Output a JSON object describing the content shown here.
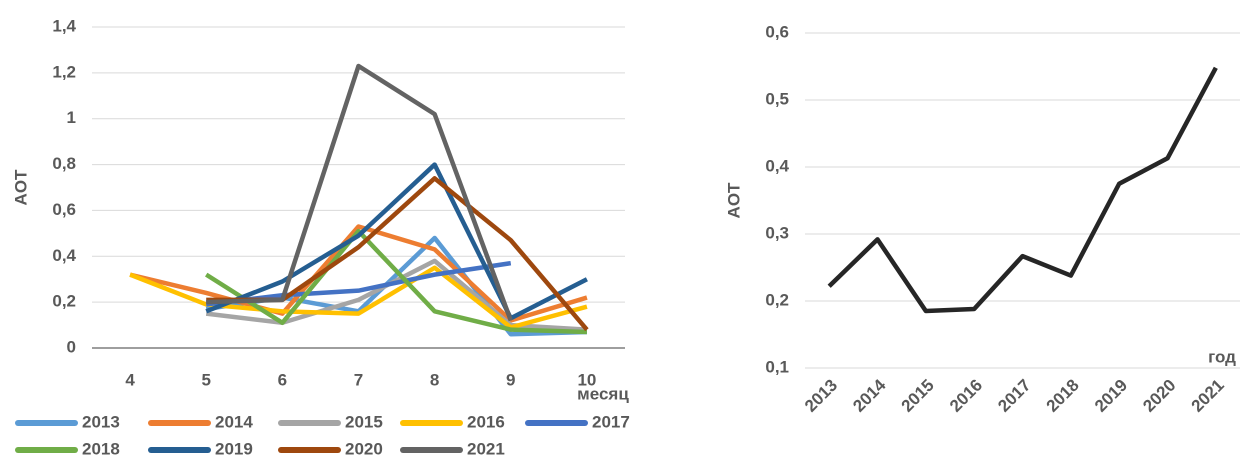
{
  "chart_data": [
    {
      "type": "line",
      "ylabel": "AOT",
      "xlabel": "месяц",
      "categories": [
        "4",
        "5",
        "6",
        "7",
        "8",
        "9",
        "10"
      ],
      "ylim": [
        0,
        1.4
      ],
      "yticks": [
        0,
        {
          "value": 0.2,
          "label": "0,2"
        },
        {
          "value": 0.4,
          "label": "0,4"
        },
        {
          "value": 0.6,
          "label": "0,6"
        },
        {
          "value": 0.8,
          "label": "0,8"
        },
        {
          "value": 1,
          "label": "1"
        },
        {
          "value": 1.2,
          "label": "1,2"
        },
        {
          "value": 1.4,
          "label": "1,4"
        }
      ],
      "grid": true,
      "legend": "bottom",
      "series": [
        {
          "name": "2013",
          "color": "#5b9bd5",
          "values": [
            null,
            0.17,
            0.22,
            0.16,
            0.48,
            0.06,
            0.07
          ]
        },
        {
          "name": "2014",
          "color": "#ed7d31",
          "values": [
            0.32,
            0.24,
            0.15,
            0.53,
            0.43,
            0.12,
            0.22
          ]
        },
        {
          "name": "2015",
          "color": "#a5a5a5",
          "values": [
            null,
            0.15,
            0.11,
            0.21,
            0.38,
            0.1,
            0.08
          ]
        },
        {
          "name": "2016",
          "color": "#ffc000",
          "values": [
            0.32,
            0.19,
            0.16,
            0.15,
            0.35,
            0.09,
            0.18
          ]
        },
        {
          "name": "2017",
          "color": "#4472c4",
          "values": [
            null,
            0.19,
            0.23,
            0.25,
            0.32,
            0.37,
            null
          ]
        },
        {
          "name": "2018",
          "color": "#70ad47",
          "values": [
            null,
            0.32,
            0.11,
            0.51,
            0.16,
            0.08,
            0.07
          ]
        },
        {
          "name": "2019",
          "color": "#255e91",
          "values": [
            null,
            0.16,
            0.29,
            0.49,
            0.8,
            0.13,
            0.3
          ]
        },
        {
          "name": "2020",
          "color": "#9e480e",
          "values": [
            null,
            0.21,
            0.21,
            0.44,
            0.74,
            0.47,
            0.08
          ]
        },
        {
          "name": "2021",
          "color": "#636363",
          "values": [
            null,
            0.2,
            0.21,
            1.23,
            1.02,
            0.12,
            null
          ]
        }
      ]
    },
    {
      "type": "line",
      "ylabel": "AOT",
      "xlabel": "год",
      "categories": [
        "2013",
        "2014",
        "2015",
        "2016",
        "2017",
        "2018",
        "2019",
        "2020",
        "2021"
      ],
      "ylim": [
        0.1,
        0.6
      ],
      "yticks": [
        {
          "value": 0.1,
          "label": "0,1"
        },
        {
          "value": 0.2,
          "label": "0,2"
        },
        {
          "value": 0.3,
          "label": "0,3"
        },
        {
          "value": 0.4,
          "label": "0,4"
        },
        {
          "value": 0.5,
          "label": "0,5"
        },
        {
          "value": 0.6,
          "label": "0,6"
        }
      ],
      "grid": true,
      "xlabels_rotated": true,
      "color": "#262626",
      "values": [
        0.222,
        0.292,
        0.185,
        0.188,
        0.267,
        0.238,
        0.375,
        0.413,
        0.548
      ]
    }
  ]
}
